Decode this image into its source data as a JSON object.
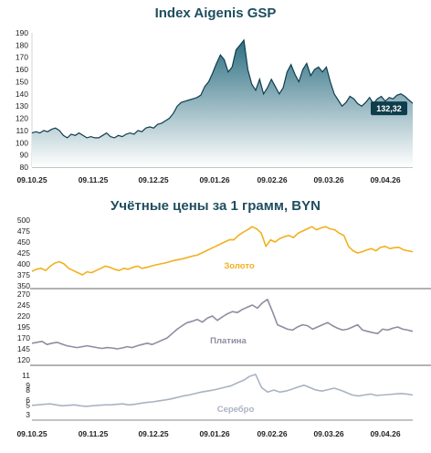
{
  "chart_data": [
    {
      "type": "area",
      "title": "Index Aigenis GSP",
      "x_ticks": [
        "09.10.25",
        "09.11.25",
        "09.12.25",
        "09.01.26",
        "09.02.26",
        "09.03.26",
        "09.04.26"
      ],
      "y_ticks": [
        "80",
        "90",
        "100",
        "110",
        "120",
        "130",
        "140",
        "150",
        "160",
        "170",
        "180",
        "190"
      ],
      "ylim": [
        80,
        190
      ],
      "last_value_label": "132,32",
      "colors": {
        "line": "#0f3d4c",
        "fill_top": "#2e6f82",
        "fill_bottom": "#ffffff",
        "badge": "#0f3d4c"
      },
      "values": [
        108,
        109,
        108,
        110,
        109,
        111,
        112,
        110,
        106,
        104,
        107,
        106,
        108,
        106,
        104,
        105,
        104,
        104,
        106,
        108,
        105,
        104,
        106,
        105,
        107,
        108,
        107,
        110,
        109,
        112,
        113,
        112,
        115,
        116,
        118,
        120,
        124,
        130,
        133,
        134,
        135,
        136,
        137,
        139,
        146,
        150,
        157,
        165,
        172,
        168,
        158,
        162,
        176,
        180,
        184,
        160,
        148,
        143,
        152,
        140,
        145,
        152,
        146,
        140,
        145,
        158,
        164,
        156,
        150,
        160,
        165,
        155,
        160,
        162,
        158,
        162,
        150,
        140,
        135,
        130,
        133,
        138,
        136,
        132,
        130,
        133,
        137,
        132,
        136,
        138,
        134,
        137,
        136,
        139,
        140,
        138,
        135,
        132.32
      ]
    },
    {
      "type": "line",
      "title": "Учётные цены за 1 грамм, BYN",
      "x_ticks": [
        "09.10.25",
        "09.11.25",
        "09.12.25",
        "09.01.26",
        "09.02.26",
        "09.03.26",
        "09.04.26"
      ],
      "panels": [
        {
          "name": "Золото",
          "color": "#f2b01e",
          "ylim": [
            350,
            500
          ],
          "y_ticks": [
            "350",
            "375",
            "400",
            "425",
            "450",
            "475",
            "500"
          ],
          "values": [
            383,
            388,
            390,
            385,
            395,
            402,
            405,
            400,
            390,
            385,
            380,
            375,
            382,
            380,
            385,
            390,
            395,
            392,
            388,
            385,
            390,
            388,
            392,
            395,
            390,
            392,
            395,
            398,
            400,
            402,
            405,
            408,
            410,
            412,
            415,
            418,
            420,
            425,
            430,
            435,
            440,
            445,
            450,
            455,
            455,
            465,
            472,
            478,
            485,
            480,
            470,
            440,
            455,
            450,
            458,
            462,
            465,
            460,
            470,
            475,
            480,
            485,
            478,
            482,
            485,
            480,
            478,
            470,
            465,
            440,
            430,
            425,
            428,
            432,
            435,
            430,
            438,
            440,
            435,
            437,
            438,
            432,
            430,
            428
          ]
        },
        {
          "name": "Платина",
          "color": "#8e8da2",
          "ylim": [
            120,
            270
          ],
          "y_ticks": [
            "120",
            "145",
            "170",
            "195",
            "220",
            "245",
            "270"
          ],
          "values": [
            158,
            160,
            162,
            155,
            158,
            160,
            156,
            152,
            150,
            148,
            150,
            152,
            150,
            148,
            146,
            148,
            147,
            145,
            147,
            150,
            148,
            152,
            155,
            158,
            155,
            160,
            165,
            170,
            180,
            190,
            198,
            205,
            208,
            212,
            206,
            215,
            220,
            210,
            218,
            225,
            230,
            228,
            235,
            240,
            245,
            238,
            250,
            258,
            230,
            200,
            195,
            190,
            188,
            195,
            200,
            198,
            190,
            195,
            200,
            205,
            198,
            192,
            188,
            190,
            195,
            200,
            188,
            185,
            182,
            180,
            190,
            188,
            192,
            195,
            190,
            188,
            185
          ]
        },
        {
          "name": "Серебро",
          "color": "#aab3c2",
          "ylim": [
            3,
            11
          ],
          "y_ticks": [
            "3",
            "5",
            "6",
            "8",
            "9",
            "11"
          ],
          "values": [
            4.9,
            5.0,
            5.1,
            5.2,
            5.0,
            4.8,
            4.9,
            5.0,
            4.8,
            4.7,
            4.8,
            4.9,
            5.0,
            5.0,
            5.1,
            5.2,
            5.0,
            5.1,
            5.3,
            5.5,
            5.6,
            5.8,
            6.0,
            6.2,
            6.5,
            6.8,
            7.0,
            7.3,
            7.6,
            7.8,
            8.0,
            8.3,
            8.6,
            8.9,
            9.5,
            10.0,
            10.8,
            11.2,
            8.5,
            7.6,
            8.0,
            7.6,
            7.8,
            8.2,
            8.6,
            9.0,
            8.5,
            8.0,
            7.8,
            8.1,
            8.4,
            8.0,
            7.5,
            7.0,
            6.8,
            7.0,
            7.2,
            6.9,
            7.0,
            7.1,
            7.2,
            7.3,
            7.2,
            7.0
          ]
        }
      ]
    }
  ]
}
